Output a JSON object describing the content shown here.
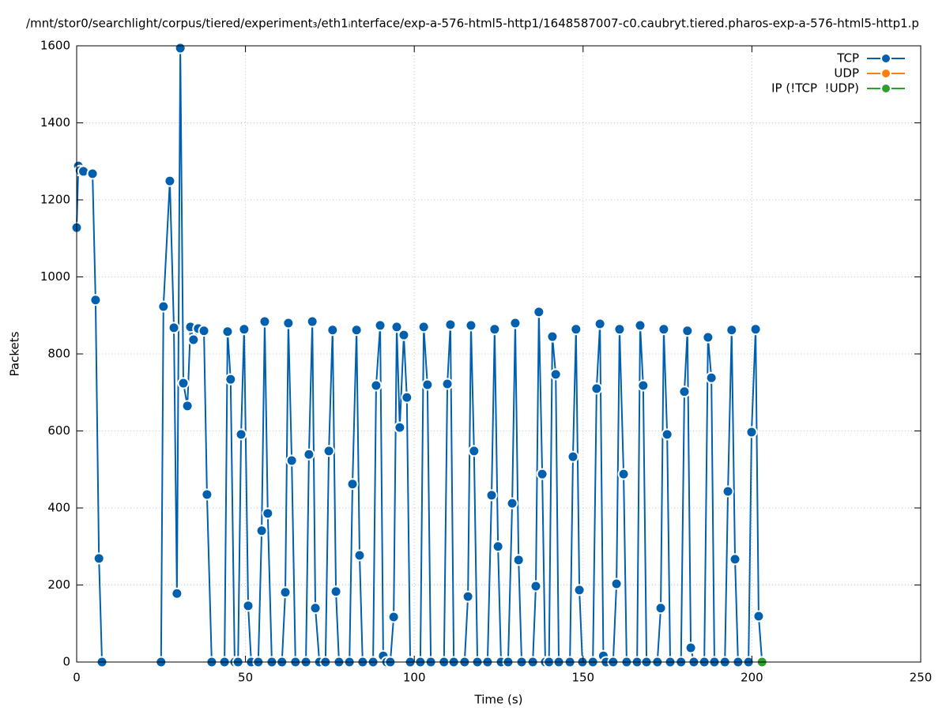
{
  "chart_data": {
    "type": "line",
    "title": "/mnt/stor0/searchlight/corpus/tiered/experiment₃/eth1ᵢnterface/exp-a-576-html5-http1/1648587007-c0.caubryt.tiered.pharos-exp-a-576-html5-http1.p",
    "xlabel": "Time (s)",
    "ylabel": "Packets",
    "xlim": [
      0,
      250
    ],
    "xticks": [
      0,
      50,
      100,
      150,
      200,
      250
    ],
    "ylim": [
      0,
      1600
    ],
    "yticks": [
      0,
      200,
      400,
      600,
      800,
      1000,
      1200,
      1400,
      1600
    ],
    "grid": true,
    "legend": "top-right",
    "series": [
      {
        "name": "TCP",
        "color": "#0060ad",
        "x": [
          0,
          0.5,
          1,
          2,
          4.7,
          5.6,
          6.6,
          7.5,
          null,
          25,
          25.7,
          27.6,
          28.8,
          29.7,
          30.7,
          31.6,
          32.8,
          33.7,
          34.6,
          36,
          37.7,
          38.6,
          40,
          null,
          43.8,
          44.7,
          45.6,
          46.8,
          null,
          47.8,
          48.7,
          49.6,
          50.8,
          51.7,
          null,
          53.8,
          54.8,
          55.7,
          56.6,
          57.8,
          null,
          60.8,
          61.8,
          62.7,
          63.7,
          64.8,
          null,
          67.9,
          68.8,
          69.8,
          70.7,
          71.9,
          null,
          73.7,
          74.7,
          75.8,
          76.8,
          77.7,
          null,
          80.8,
          81.7,
          82.9,
          83.8,
          84.7,
          null,
          87.8,
          88.7,
          89.9,
          90.8,
          91.8,
          null,
          92.9,
          93.9,
          94.8,
          95.7,
          96.9,
          97.8,
          98.8,
          null,
          101.8,
          102.8,
          103.9,
          104.9,
          null,
          108.8,
          109.8,
          110.7,
          111.7,
          null,
          114.9,
          115.9,
          116.8,
          117.7,
          118.7,
          null,
          121.7,
          122.9,
          123.8,
          124.8,
          125.7,
          null,
          127.8,
          129,
          129.9,
          130.9,
          131.8,
          null,
          135.1,
          136,
          136.9,
          137.9,
          138.8,
          null,
          139.9,
          140.9,
          141.9,
          142.8,
          null,
          146.1,
          147,
          147.9,
          148.9,
          149.8,
          null,
          152.9,
          154,
          155,
          156,
          156.8,
          null,
          158.9,
          159.9,
          160.8,
          162,
          162.9,
          null,
          166,
          166.9,
          167.8,
          168.8,
          null,
          172,
          173,
          173.9,
          174.9,
          175.8,
          null,
          179,
          180,
          180.9,
          181.9,
          182.8,
          null,
          185.9,
          187,
          188,
          188.9,
          null,
          192,
          192.9,
          194,
          195,
          195.9,
          null,
          199,
          199.9,
          201.1,
          202,
          203
        ],
        "values": [
          1128,
          1288,
          1276,
          1274,
          1268,
          940,
          269,
          0,
          null,
          0,
          923,
          1249,
          868,
          178,
          1594,
          724,
          665,
          870,
          837,
          866,
          860,
          435,
          0,
          null,
          0,
          858,
          734,
          0,
          null,
          0,
          591,
          864,
          146,
          0,
          null,
          0,
          341,
          884,
          386,
          0,
          null,
          0,
          181,
          880,
          523,
          0,
          null,
          0,
          539,
          884,
          140,
          0,
          null,
          0,
          548,
          862,
          183,
          0,
          null,
          0,
          462,
          862,
          277,
          0,
          null,
          0,
          718,
          874,
          16,
          0,
          null,
          0,
          117,
          870,
          609,
          849,
          687,
          0,
          null,
          0,
          870,
          720,
          0,
          null,
          0,
          722,
          876,
          0,
          null,
          0,
          170,
          874,
          548,
          0,
          null,
          0,
          433,
          864,
          300,
          0,
          null,
          0,
          412,
          880,
          265,
          0,
          null,
          0,
          197,
          909,
          488,
          0,
          null,
          0,
          845,
          747,
          0,
          null,
          0,
          533,
          864,
          187,
          0,
          null,
          0,
          710,
          878,
          16,
          0,
          null,
          0,
          203,
          864,
          488,
          0,
          null,
          0,
          874,
          718,
          0,
          null,
          0,
          140,
          864,
          591,
          0,
          null,
          0,
          702,
          860,
          37,
          0,
          null,
          0,
          843,
          738,
          0,
          null,
          0,
          443,
          862,
          267,
          0,
          null,
          0,
          597,
          864,
          119,
          0
        ]
      },
      {
        "name": "UDP",
        "color": "#ff7f0e",
        "x": [],
        "values": []
      },
      {
        "name": "IP (!TCP  !UDP)",
        "color": "#2ca02c",
        "x": [
          203
        ],
        "values": [
          0
        ]
      }
    ]
  }
}
